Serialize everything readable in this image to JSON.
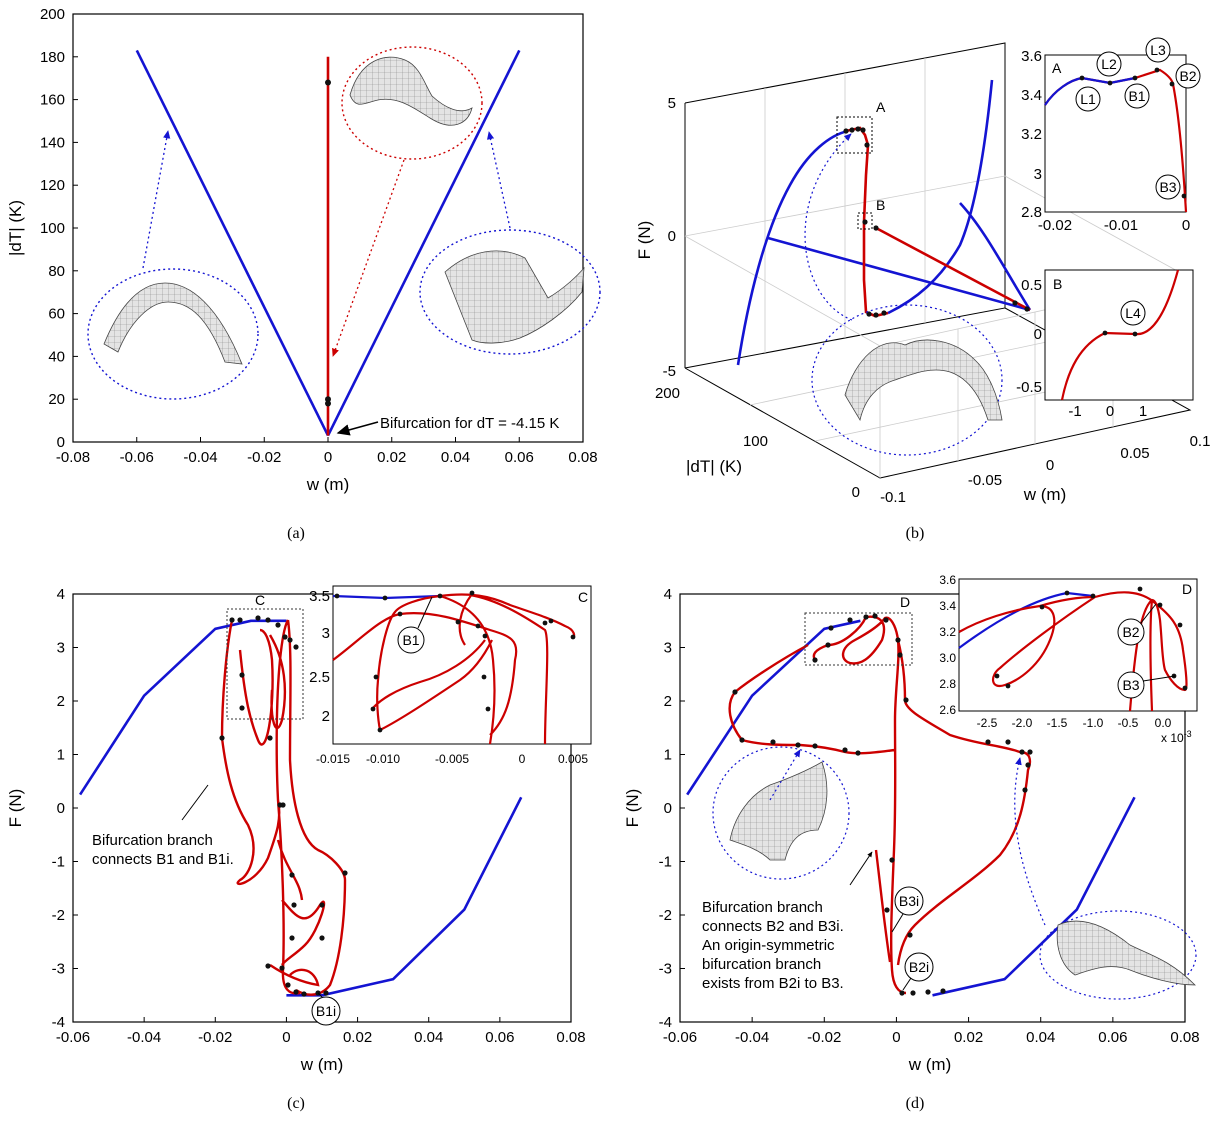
{
  "panels": {
    "a": {
      "caption": "(a)",
      "xlabel": "w (m)",
      "ylabel": "|dT| (K)",
      "xticks": [
        "-0.08",
        "-0.06",
        "-0.04",
        "-0.02",
        "0",
        "0.02",
        "0.04",
        "0.06",
        "0.08"
      ],
      "yticks": [
        "0",
        "20",
        "40",
        "60",
        "80",
        "100",
        "120",
        "140",
        "160",
        "180",
        "200"
      ],
      "annotation": "Bifurcation for dT = -4.15 K"
    },
    "b": {
      "caption": "(b)",
      "zlabel": "F (N)",
      "ylabel": "|dT| (K)",
      "xlabel": "w (m)",
      "zticks": [
        "5",
        "0",
        "-5"
      ],
      "dTticks": [
        "200",
        "100",
        "0"
      ],
      "wticks": [
        "-0.1",
        "-0.05",
        "0",
        "0.05",
        "0.1"
      ],
      "box_labels": [
        "A",
        "B"
      ],
      "insetA": {
        "tag": "A",
        "xticks": [
          "-0.02",
          "-0.01",
          "0"
        ],
        "yticks": [
          "3.6",
          "3.4",
          "3.2",
          "3",
          "2.8"
        ],
        "labels": [
          "L1",
          "L2",
          "B1",
          "L3",
          "B2",
          "B3"
        ]
      },
      "insetB": {
        "tag": "B",
        "xticks": [
          "-1",
          "0",
          "1"
        ],
        "yticks": [
          "0.5",
          "0",
          "-0.5"
        ],
        "labels": [
          "L4"
        ]
      }
    },
    "c": {
      "caption": "(c)",
      "xlabel": "w (m)",
      "ylabel": "F (N)",
      "xticks": [
        "-0.06",
        "-0.04",
        "-0.02",
        "0",
        "0.02",
        "0.04",
        "0.06",
        "0.08"
      ],
      "yticks": [
        "4",
        "3",
        "2",
        "1",
        "0",
        "-1",
        "-2",
        "-3",
        "-4"
      ],
      "box_label": "C",
      "note": [
        "Bifurcation branch",
        "connects B1 and B1i."
      ],
      "labels": [
        "B1i"
      ],
      "inset": {
        "tag": "C",
        "xticks": [
          "-0.015",
          "-0.010",
          "-0.005",
          "0",
          "0.005"
        ],
        "yticks": [
          "3.5",
          "3",
          "2.5",
          "2"
        ],
        "labels": [
          "B1"
        ]
      }
    },
    "d": {
      "caption": "(d)",
      "xlabel": "w (m)",
      "ylabel": "F (N)",
      "xticks": [
        "-0.06",
        "-0.04",
        "-0.02",
        "0",
        "0.02",
        "0.04",
        "0.06",
        "0.08"
      ],
      "yticks": [
        "4",
        "3",
        "2",
        "1",
        "0",
        "-1",
        "-2",
        "-3",
        "-4"
      ],
      "box_label": "D",
      "note": [
        "Bifurcation branch",
        "connects B2 and B3i.",
        "An origin-symmetric",
        "bifurcation branch",
        "exists from B2i to B3."
      ],
      "labels": [
        "B3i",
        "B2i"
      ],
      "inset": {
        "tag": "D",
        "xticks": [
          "-2.5",
          "-2.0",
          "-1.5",
          "-1.0",
          "-0.5",
          "0.0"
        ],
        "yticks": [
          "3.6",
          "3.4",
          "3.2",
          "3.0",
          "2.8",
          "2.6"
        ],
        "xmult": "x 10",
        "xmult_exp": "-3",
        "labels": [
          "B2",
          "B3"
        ]
      }
    }
  },
  "colors": {
    "primary": "#1414d2",
    "secondary": "#cc0000",
    "point": "#111111",
    "grid": "#cccccc"
  },
  "chart_data": [
    {
      "type": "line",
      "panel": "a",
      "xlabel": "w (m)",
      "ylabel": "|dT| (K)",
      "xlim": [
        -0.08,
        0.08
      ],
      "ylim": [
        0,
        200
      ],
      "series": [
        {
          "color": "blue",
          "x": [
            -0.06,
            0.0
          ],
          "y": [
            183,
            3
          ]
        },
        {
          "color": "blue",
          "x": [
            0.0,
            0.06
          ],
          "y": [
            3,
            183
          ]
        },
        {
          "color": "red",
          "x": [
            0.0,
            0.0
          ],
          "y": [
            3,
            180
          ]
        }
      ],
      "points": [
        {
          "x": 0,
          "y": 168
        },
        {
          "x": 0,
          "y": 20
        },
        {
          "x": 0,
          "y": 18
        }
      ],
      "annotations": [
        "Bifurcation for dT = -4.15 K"
      ]
    },
    {
      "type": "line",
      "panel": "c",
      "xlabel": "w (m)",
      "ylabel": "F (N)",
      "xlim": [
        -0.06,
        0.08
      ],
      "ylim": [
        -4,
        4
      ],
      "series": [
        {
          "color": "blue",
          "x": [
            -0.058,
            -0.04,
            -0.02,
            -0.01,
            0.0
          ],
          "y": [
            0.25,
            2.1,
            3.35,
            3.5,
            3.5
          ]
        },
        {
          "color": "blue",
          "x": [
            0.0,
            0.01,
            0.03,
            0.05,
            0.066
          ],
          "y": [
            -3.5,
            -3.5,
            -3.2,
            -1.9,
            0.2
          ]
        }
      ]
    },
    {
      "type": "line",
      "panel": "d",
      "xlabel": "w (m)",
      "ylabel": "F (N)",
      "xlim": [
        -0.06,
        0.08
      ],
      "ylim": [
        -4,
        4
      ],
      "series": [
        {
          "color": "blue",
          "x": [
            -0.058,
            -0.04,
            -0.02,
            -0.01
          ],
          "y": [
            0.25,
            2.1,
            3.35,
            3.5
          ]
        },
        {
          "color": "blue",
          "x": [
            0.01,
            0.03,
            0.05,
            0.066
          ],
          "y": [
            -3.5,
            -3.2,
            -1.9,
            0.2
          ]
        }
      ]
    }
  ]
}
